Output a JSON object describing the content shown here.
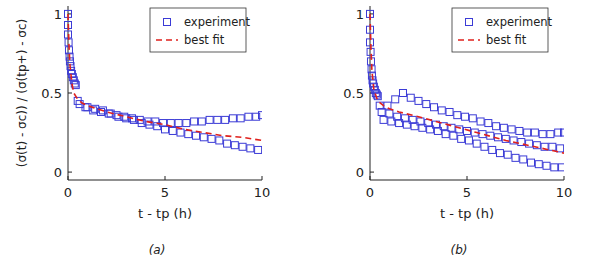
{
  "chart_data": [
    {
      "type": "scatter",
      "title": "(a)",
      "xlabel": "t - tp (h)",
      "ylabel": "(σ(t) - σc)) / (σ(tp+) - σc)",
      "xlim": [
        0,
        10
      ],
      "ylim": [
        -0.05,
        1.05
      ],
      "xticks": [
        0,
        5,
        10
      ],
      "yticks": [
        0,
        0.5,
        1
      ],
      "grid": false,
      "legend": "northeast",
      "series": [
        {
          "name": "experiment",
          "type": "scatter",
          "marker": "square",
          "color": "#3b3bd6",
          "x": [
            0,
            0,
            0,
            0.03,
            0.05,
            0.08,
            0.1,
            0.13,
            0.16,
            0.2,
            0.25,
            0.3,
            0.35,
            0.4,
            0.5,
            0.9,
            1.3,
            1.7,
            2.1,
            2.5,
            2.9,
            3.3,
            3.7,
            4.1,
            4.5,
            4.9,
            5.3,
            5.7,
            6.1,
            6.5,
            6.9,
            7.3,
            7.7,
            8.1,
            8.5,
            8.9,
            9.3,
            9.7,
            10.0,
            0.6,
            1.0,
            1.4,
            1.8,
            2.2,
            2.6,
            3.0,
            3.4,
            3.8,
            4.2,
            4.6,
            5.0,
            5.4,
            5.8,
            6.2,
            6.6,
            7.0,
            7.4,
            7.8,
            8.2,
            8.6,
            9.0,
            9.4,
            9.8
          ],
          "values": [
            1,
            0.93,
            0.87,
            0.82,
            0.77,
            0.73,
            0.7,
            0.67,
            0.64,
            0.62,
            0.6,
            0.58,
            0.56,
            0.55,
            0.45,
            0.41,
            0.39,
            0.38,
            0.37,
            0.36,
            0.35,
            0.34,
            0.33,
            0.32,
            0.32,
            0.31,
            0.31,
            0.31,
            0.31,
            0.32,
            0.32,
            0.33,
            0.33,
            0.33,
            0.34,
            0.34,
            0.35,
            0.35,
            0.36,
            0.43,
            0.41,
            0.4,
            0.39,
            0.37,
            0.35,
            0.34,
            0.33,
            0.31,
            0.3,
            0.29,
            0.27,
            0.26,
            0.25,
            0.24,
            0.23,
            0.22,
            0.21,
            0.2,
            0.18,
            0.17,
            0.16,
            0.15,
            0.14
          ]
        },
        {
          "name": "best fit",
          "type": "line",
          "line_style": "dashed",
          "color": "#e0201c",
          "x": [
            0,
            0.05,
            0.1,
            0.2,
            0.3,
            0.5,
            0.75,
            1,
            1.5,
            2,
            3,
            4,
            5,
            6,
            7,
            8,
            9,
            10
          ],
          "values": [
            1,
            0.8,
            0.68,
            0.56,
            0.5,
            0.46,
            0.435,
            0.42,
            0.4,
            0.38,
            0.35,
            0.32,
            0.3,
            0.27,
            0.25,
            0.23,
            0.22,
            0.2
          ]
        }
      ]
    },
    {
      "type": "scatter",
      "title": "(b)",
      "xlabel": "t - tp (h)",
      "xlim": [
        0,
        10
      ],
      "ylim": [
        -0.05,
        1.05
      ],
      "xticks": [
        0,
        5,
        10
      ],
      "yticks": [
        0,
        0.5,
        1
      ],
      "grid": false,
      "legend": "northeast",
      "series": [
        {
          "name": "experiment",
          "type": "scatter",
          "marker": "square",
          "color": "#3b3bd6",
          "x": [
            0,
            0,
            0,
            0.03,
            0.05,
            0.08,
            0.1,
            0.13,
            0.16,
            0.2,
            0.25,
            0.3,
            0.35,
            0.4,
            0.5,
            0.9,
            1.3,
            1.7,
            2.1,
            2.5,
            2.9,
            3.3,
            3.7,
            4.1,
            4.5,
            4.9,
            5.3,
            5.7,
            6.1,
            6.5,
            6.9,
            7.3,
            7.7,
            8.1,
            8.5,
            8.9,
            9.3,
            9.7,
            10.0,
            0.6,
            1.0,
            1.4,
            1.8,
            2.2,
            2.6,
            3.0,
            3.4,
            3.8,
            4.2,
            4.6,
            5.0,
            5.4,
            5.8,
            6.2,
            6.6,
            7.0,
            7.4,
            7.8,
            8.2,
            8.6,
            9.0,
            9.4,
            9.8,
            0.7,
            1.1,
            1.5,
            1.9,
            2.3,
            2.7,
            3.1,
            3.5,
            3.9,
            4.3,
            4.7,
            5.1,
            5.5,
            5.9,
            6.3,
            6.7,
            7.1,
            7.5,
            7.9,
            8.3,
            8.7,
            9.1,
            9.5,
            9.9
          ],
          "values": [
            1,
            0.9,
            0.82,
            0.76,
            0.7,
            0.65,
            0.61,
            0.58,
            0.56,
            0.54,
            0.52,
            0.5,
            0.49,
            0.48,
            0.42,
            0.42,
            0.46,
            0.5,
            0.47,
            0.45,
            0.43,
            0.41,
            0.39,
            0.38,
            0.36,
            0.35,
            0.34,
            0.32,
            0.31,
            0.29,
            0.28,
            0.27,
            0.26,
            0.25,
            0.25,
            0.24,
            0.24,
            0.25,
            0.25,
            0.38,
            0.37,
            0.35,
            0.34,
            0.33,
            0.32,
            0.31,
            0.3,
            0.29,
            0.28,
            0.27,
            0.26,
            0.25,
            0.24,
            0.23,
            0.22,
            0.21,
            0.2,
            0.19,
            0.18,
            0.17,
            0.16,
            0.16,
            0.15,
            0.33,
            0.32,
            0.31,
            0.3,
            0.29,
            0.28,
            0.27,
            0.26,
            0.24,
            0.23,
            0.21,
            0.2,
            0.18,
            0.16,
            0.14,
            0.12,
            0.11,
            0.09,
            0.08,
            0.06,
            0.05,
            0.04,
            0.03,
            0.03
          ]
        },
        {
          "name": "best fit",
          "type": "line",
          "line_style": "dashed",
          "color": "#e0201c",
          "x": [
            0,
            0.05,
            0.1,
            0.2,
            0.4,
            0.7,
            1,
            1.5,
            2.5,
            4,
            5.5,
            7,
            8.5,
            10
          ],
          "values": [
            1,
            0.78,
            0.64,
            0.52,
            0.45,
            0.42,
            0.4,
            0.38,
            0.35,
            0.3,
            0.25,
            0.2,
            0.16,
            0.12
          ]
        }
      ]
    }
  ]
}
